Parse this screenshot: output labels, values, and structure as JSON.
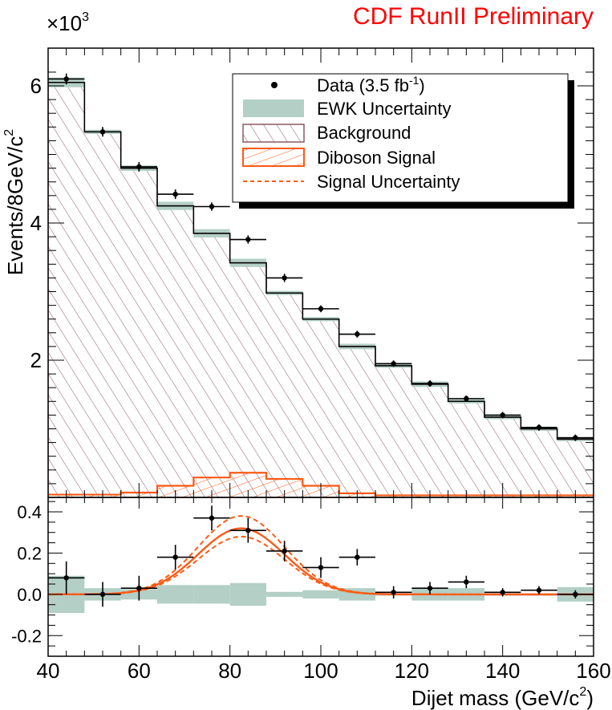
{
  "chart_data": {
    "type": "bar",
    "title": "CDF RunII Preliminary",
    "x_bin_edges": [
      40,
      48,
      56,
      64,
      72,
      80,
      88,
      96,
      104,
      112,
      120,
      128,
      136,
      144,
      152,
      160
    ],
    "xlim": [
      40,
      160
    ],
    "xlabel_main": "Dijet mass (GeV/c",
    "xlabel_sup": "2",
    "xlabel_end": ")",
    "x_ticks": [
      "40",
      "60",
      "80",
      "100",
      "120",
      "140",
      "160"
    ],
    "top_panel": {
      "ylabel_main": "Events/8GeV/c",
      "ylabel_sup": "2",
      "y_multiplier_main": "×10",
      "y_multiplier_sup": "3",
      "ylim": [
        0,
        6.55
      ],
      "y_ticks": [
        "2",
        "4",
        "6"
      ],
      "background": [
        6.05,
        5.33,
        4.8,
        4.25,
        3.85,
        3.42,
        2.98,
        2.6,
        2.2,
        1.92,
        1.65,
        1.4,
        1.17,
        1.0,
        0.85
      ],
      "ewk_uncertainty": [
        0.07,
        0.03,
        0.04,
        0.06,
        0.06,
        0.06,
        0.03,
        0.03,
        0.04,
        0.03,
        0.04,
        0.03,
        0.03,
        0.03,
        0.03
      ],
      "diboson_signal": [
        0.04,
        0.04,
        0.07,
        0.17,
        0.29,
        0.36,
        0.27,
        0.17,
        0.06,
        0.03,
        0.03,
        0.03,
        0.03,
        0.03,
        0.03
      ],
      "data": [
        {
          "x": 44,
          "y": 6.1,
          "err": 0.08
        },
        {
          "x": 52,
          "y": 5.33,
          "err": 0.07
        },
        {
          "x": 60,
          "y": 4.82,
          "err": 0.07
        },
        {
          "x": 68,
          "y": 4.42,
          "err": 0.07
        },
        {
          "x": 76,
          "y": 4.24,
          "err": 0.06
        },
        {
          "x": 84,
          "y": 3.76,
          "err": 0.06
        },
        {
          "x": 92,
          "y": 3.2,
          "err": 0.06
        },
        {
          "x": 100,
          "y": 2.75,
          "err": 0.05
        },
        {
          "x": 108,
          "y": 2.38,
          "err": 0.05
        },
        {
          "x": 116,
          "y": 1.95,
          "err": 0.04
        },
        {
          "x": 124,
          "y": 1.66,
          "err": 0.04
        },
        {
          "x": 132,
          "y": 1.44,
          "err": 0.04
        },
        {
          "x": 140,
          "y": 1.2,
          "err": 0.035
        },
        {
          "x": 148,
          "y": 1.02,
          "err": 0.03
        },
        {
          "x": 156,
          "y": 0.87,
          "err": 0.03
        }
      ],
      "legend": [
        {
          "label": "Data (3.5 fb",
          "sup": "-1",
          "end": ")",
          "style": "marker"
        },
        {
          "label": "EWK Uncertainty",
          "sup": "",
          "end": "",
          "style": "band"
        },
        {
          "label": "Background",
          "sup": "",
          "end": "",
          "style": "hatch-bg"
        },
        {
          "label": "Diboson Signal",
          "sup": "",
          "end": "",
          "style": "hatch-sig"
        },
        {
          "label": "Signal Uncertainty",
          "sup": "",
          "end": "",
          "style": "dashed"
        }
      ]
    },
    "bottom_panel": {
      "ylim": [
        -0.3,
        0.47
      ],
      "y_ticks": [
        "-0.2",
        "0.0",
        "0.2",
        "0.4"
      ],
      "y_tick_values": [
        -0.2,
        0.0,
        0.2,
        0.4
      ],
      "ewk_band": [
        0.09,
        0.03,
        0.025,
        0.045,
        0.045,
        0.055,
        0.012,
        0.02,
        0.03,
        0.005,
        0.03,
        0.03,
        0.005,
        0.005,
        0.035
      ],
      "data": [
        {
          "x": 44,
          "y": 0.08,
          "err": 0.08
        },
        {
          "x": 52,
          "y": 0.0,
          "err": 0.06
        },
        {
          "x": 60,
          "y": 0.03,
          "err": 0.06
        },
        {
          "x": 68,
          "y": 0.18,
          "err": 0.06
        },
        {
          "x": 76,
          "y": 0.37,
          "err": 0.06
        },
        {
          "x": 84,
          "y": 0.31,
          "err": 0.06
        },
        {
          "x": 92,
          "y": 0.21,
          "err": 0.05
        },
        {
          "x": 100,
          "y": 0.13,
          "err": 0.05
        },
        {
          "x": 108,
          "y": 0.18,
          "err": 0.04
        },
        {
          "x": 116,
          "y": 0.01,
          "err": 0.03
        },
        {
          "x": 124,
          "y": 0.03,
          "err": 0.03
        },
        {
          "x": 132,
          "y": 0.06,
          "err": 0.03
        },
        {
          "x": 140,
          "y": 0.01,
          "err": 0.02
        },
        {
          "x": 148,
          "y": 0.02,
          "err": 0.02
        },
        {
          "x": 156,
          "y": 0.0,
          "err": 0.02
        }
      ],
      "signal_fit": {
        "mean": 82.5,
        "sigma": 9.5,
        "amplitude": 0.32,
        "upper_amplitude": 0.38,
        "lower_amplitude": 0.28
      }
    },
    "colors": {
      "title": "#ff0000",
      "background_hatch": "#8a5a64",
      "signal": "#ff5a14",
      "ewk_band": "#b3cfc6",
      "data": "#000000",
      "legend_shadow": "#000000"
    }
  }
}
